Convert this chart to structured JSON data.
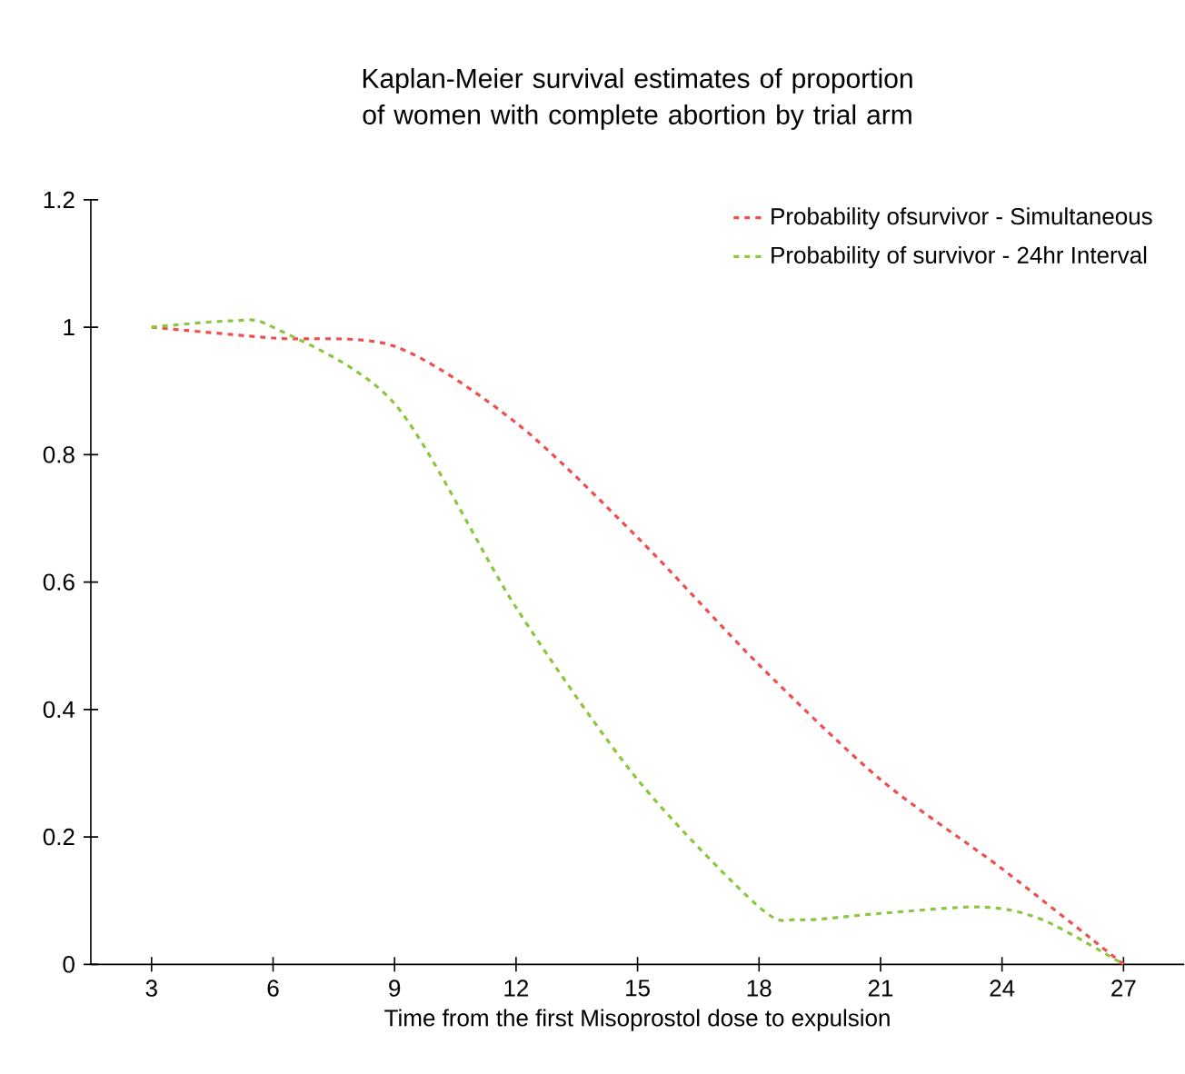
{
  "chart_data": {
    "type": "line",
    "title": "Kaplan-Meier survival estimates of proportion of women with  complete abortion by trial arm",
    "xlabel": "Time from the first Misoprostol dose to expulsion",
    "series": [
      {
        "name": "Probability ofsurvivor - Simultaneous",
        "color": "#f04e4e",
        "x": [
          3,
          6,
          9,
          12,
          15,
          18,
          21,
          24,
          27
        ],
        "values": [
          1,
          0.983,
          0.97,
          0.85,
          0.67,
          0.47,
          0.29,
          0.15,
          0
        ]
      },
      {
        "name": "Probability of survivor - 24hr Interval",
        "color": "#8cc63f",
        "x": [
          3,
          5,
          6,
          9,
          12,
          15,
          18,
          19,
          21,
          23.5,
          25,
          27
        ],
        "values": [
          1,
          1.01,
          1.0,
          0.88,
          0.56,
          0.29,
          0.09,
          0.07,
          0.08,
          0.09,
          0.07,
          0
        ]
      }
    ],
    "xlim": [
      1.5,
      28.5
    ],
    "xticks": [
      3,
      6,
      9,
      12,
      15,
      18,
      21,
      24,
      27
    ],
    "ylim": [
      0,
      1.2
    ],
    "yticks": [
      0,
      0.2,
      0.4,
      0.6,
      0.8,
      1,
      1.2
    ],
    "line_style": "dashed",
    "marker": "none",
    "legend": "top right",
    "grid": false
  }
}
